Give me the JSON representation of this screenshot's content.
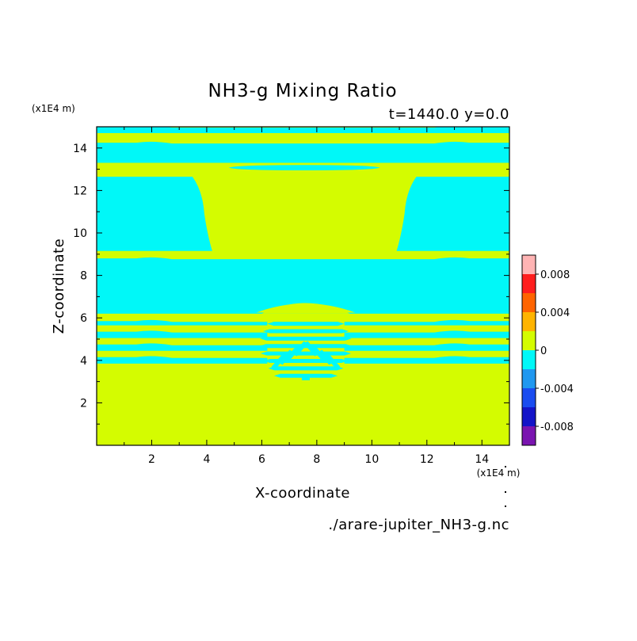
{
  "chart_data": {
    "type": "heatmap",
    "title": "NH3-g Mixing Ratio",
    "subtitle": "t=1440.0 y=0.0",
    "xlabel": "X-coordinate",
    "ylabel": "Z-coordinate",
    "x_unit": "(x1E4 m)",
    "y_unit": "(x1E4 m)",
    "xlim": [
      0,
      15
    ],
    "ylim": [
      0,
      15
    ],
    "xticks": [
      2,
      4,
      6,
      8,
      10,
      12,
      14
    ],
    "yticks": [
      2,
      4,
      6,
      8,
      10,
      12,
      14
    ],
    "source_file": "./arare-jupiter_NH3-g.nc",
    "colorbar": {
      "levels": [
        -0.01,
        -0.008,
        -0.006,
        -0.004,
        -0.002,
        0,
        0.002,
        0.004,
        0.006,
        0.008,
        0.01
      ],
      "colors": [
        "#7a14b0",
        "#1414c8",
        "#1a4cf0",
        "#2098f0",
        "#00f8f8",
        "#d4fc00",
        "#ffb400",
        "#ff6400",
        "#ff1e1e",
        "#ffb4b4"
      ],
      "tick_labels": [
        "0.008",
        "0.004",
        "0",
        "-0.004",
        "-0.008"
      ]
    },
    "background_class": "0 to 0.002",
    "negative_regions_class": "-0.002 to 0",
    "negative_regions": [
      {
        "shape": "band",
        "x": [
          0,
          15
        ],
        "z": [
          14.7,
          15.0
        ]
      },
      {
        "shape": "band",
        "x": [
          0,
          15
        ],
        "z": [
          13.3,
          14.25
        ]
      },
      {
        "shape": "block",
        "x": [
          0,
          4.2
        ],
        "z": [
          9.15,
          12.65
        ]
      },
      {
        "shape": "block",
        "x": [
          10.9,
          15
        ],
        "z": [
          9.15,
          12.65
        ]
      },
      {
        "shape": "lens",
        "x": [
          4.8,
          10.3
        ],
        "z": [
          12.95,
          13.2
        ]
      },
      {
        "shape": "band",
        "x": [
          0,
          15
        ],
        "z": [
          6.2,
          8.8
        ]
      },
      {
        "shape": "band",
        "x": [
          0,
          15
        ],
        "z": [
          5.65,
          5.85
        ]
      },
      {
        "shape": "band",
        "x": [
          0,
          15
        ],
        "z": [
          5.05,
          5.35
        ]
      },
      {
        "shape": "band",
        "x": [
          0,
          15
        ],
        "z": [
          4.45,
          4.75
        ]
      },
      {
        "shape": "band",
        "x": [
          0,
          15
        ],
        "z": [
          3.85,
          4.15
        ]
      },
      {
        "shape": "chevrons",
        "x": [
          6.3,
          8.9
        ],
        "z": [
          3.1,
          5.9
        ]
      }
    ]
  }
}
